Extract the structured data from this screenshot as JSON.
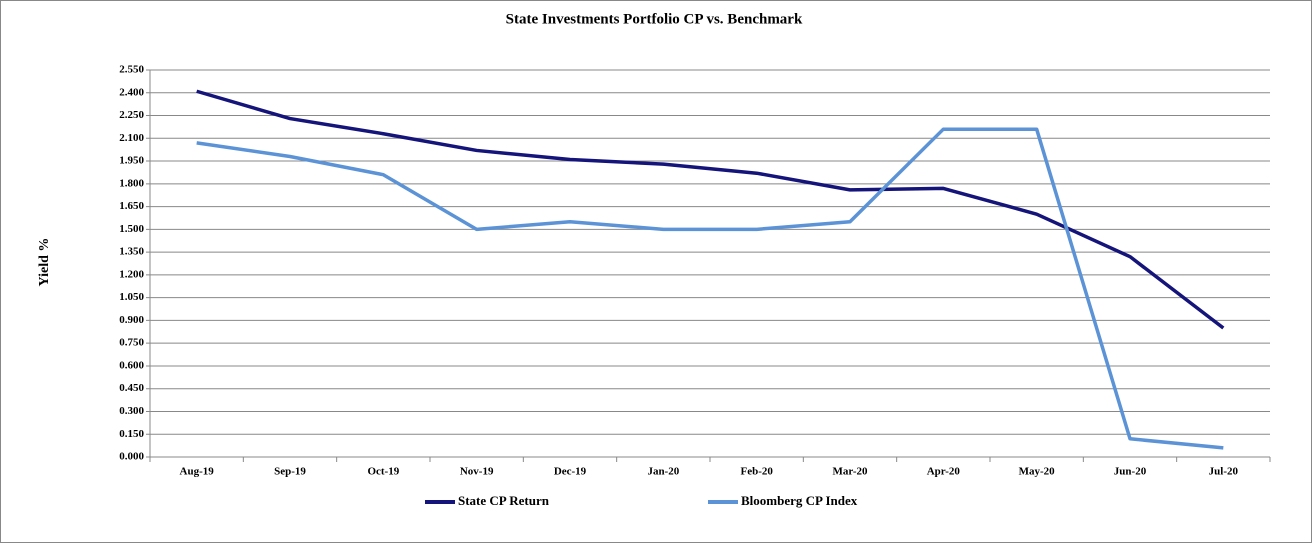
{
  "chart_data": {
    "type": "line",
    "title": "State Investments Portfolio CP vs. Benchmark",
    "y_label": "Yield %",
    "categories": [
      "Aug-19",
      "Sep-19",
      "Oct-19",
      "Nov-19",
      "Dec-19",
      "Jan-20",
      "Feb-20",
      "Mar-20",
      "Apr-20",
      "May-20",
      "Jun-20",
      "Jul-20"
    ],
    "series": [
      {
        "name": "State CP Return",
        "color": "#14147a",
        "values": [
          2.41,
          2.23,
          2.13,
          2.02,
          1.96,
          1.93,
          1.87,
          1.76,
          1.77,
          1.6,
          1.32,
          0.85
        ]
      },
      {
        "name": "Bloomberg CP Index",
        "color": "#5b93d6",
        "values": [
          2.07,
          1.98,
          1.86,
          1.5,
          1.55,
          1.5,
          1.5,
          1.55,
          2.16,
          2.16,
          0.12,
          0.06
        ]
      }
    ],
    "ylim": [
      0,
      2.55
    ],
    "yticks": [
      {
        "value": 0,
        "label": "0.000"
      },
      {
        "value": 0.15,
        "label": "0.150"
      },
      {
        "value": 0.3,
        "label": "0.300"
      },
      {
        "value": 0.45,
        "label": "0.450"
      },
      {
        "value": 0.6,
        "label": "0.600"
      },
      {
        "value": 0.75,
        "label": "0.750"
      },
      {
        "value": 0.9,
        "label": "0.900"
      },
      {
        "value": 1.05,
        "label": "1.050"
      },
      {
        "value": 1.2,
        "label": "1.200"
      },
      {
        "value": 1.35,
        "label": "1.350"
      },
      {
        "value": 1.5,
        "label": "1.500"
      },
      {
        "value": 1.65,
        "label": "1.650"
      },
      {
        "value": 1.8,
        "label": "1.800"
      },
      {
        "value": 1.95,
        "label": "1.950"
      },
      {
        "value": 2.1,
        "label": "2.100"
      },
      {
        "value": 2.25,
        "label": "2.250"
      },
      {
        "value": 2.4,
        "label": "2.400"
      },
      {
        "value": 2.55,
        "label": "2.550"
      }
    ],
    "grid": true
  }
}
